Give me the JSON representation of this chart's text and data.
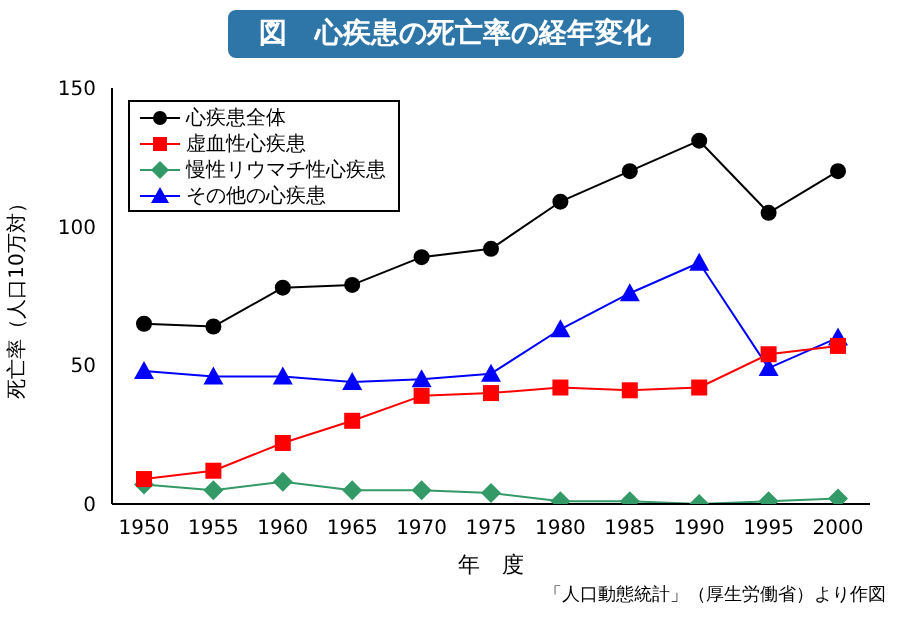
{
  "chart_data": {
    "type": "line",
    "title": "図　心疾患の死亡率の経年変化",
    "xlabel": "年　度",
    "ylabel": "死亡率（人口10万対）",
    "categories": [
      "1950",
      "1955",
      "1960",
      "1965",
      "1970",
      "1975",
      "1980",
      "1985",
      "1990",
      "1995",
      "2000"
    ],
    "series": [
      {
        "name": "心疾患全体",
        "color": "#000000",
        "marker": "circle",
        "values": [
          65,
          64,
          78,
          79,
          89,
          92,
          109,
          120,
          131,
          105,
          120
        ]
      },
      {
        "name": "虚血性心疾患",
        "color": "#ff0000",
        "marker": "square",
        "values": [
          9,
          12,
          22,
          30,
          39,
          40,
          42,
          41,
          42,
          54,
          57
        ]
      },
      {
        "name": "慢性リウマチ性心疾患",
        "color": "#339966",
        "marker": "diamond",
        "values": [
          7,
          5,
          8,
          5,
          5,
          4,
          1,
          1,
          0,
          1,
          2
        ]
      },
      {
        "name": "その他の心疾患",
        "color": "#0000ff",
        "marker": "triangle",
        "values": [
          48,
          46,
          46,
          44,
          45,
          47,
          63,
          76,
          87,
          49,
          60
        ]
      }
    ],
    "ylim": [
      0,
      150
    ],
    "yticks": [
      0,
      50,
      100,
      150
    ],
    "grid": false,
    "legend": "top left",
    "line_style": "solid",
    "annotations": [
      "「人口動態統計」（厚生労働省）より作図"
    ]
  }
}
